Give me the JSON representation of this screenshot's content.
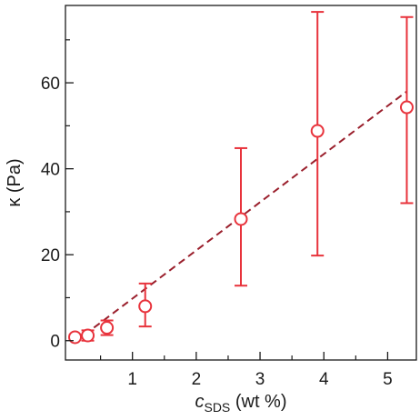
{
  "chart_data": {
    "type": "scatter",
    "xlabel": {
      "main": "c",
      "sub": "SDS",
      "rest": " (wt %)"
    },
    "ylabel": "κ (Pa)",
    "xlim": [
      -0.05,
      5.45
    ],
    "ylim": [
      -4.5,
      78
    ],
    "x_ticks": [
      1,
      2,
      3,
      4,
      5
    ],
    "x_minor_ticks": [
      0.5,
      1.5,
      2.5,
      3.5,
      4.5
    ],
    "y_ticks": [
      0,
      20,
      40,
      60
    ],
    "y_minor_ticks": [
      10,
      30,
      50,
      70
    ],
    "grid": false,
    "legend": "none",
    "colors": {
      "data": "#e8333c",
      "fit": "#9a1f2c",
      "axis": "#1a1a1a"
    },
    "series": [
      {
        "points": [
          {
            "x": 0.1,
            "y": 0.8,
            "err_low": 0.3,
            "err_high": 1.3
          },
          {
            "x": 0.3,
            "y": 1.2,
            "err_low": 0.0,
            "err_high": 2.4
          },
          {
            "x": 0.6,
            "y": 3.0,
            "err_low": 1.3,
            "err_high": 4.7
          },
          {
            "x": 1.2,
            "y": 8.0,
            "err_low": 3.3,
            "err_high": 13.3
          },
          {
            "x": 2.7,
            "y": 28.3,
            "err_low": 12.8,
            "err_high": 44.8
          },
          {
            "x": 3.9,
            "y": 48.8,
            "err_low": 19.8,
            "err_high": 76.5
          },
          {
            "x": 5.3,
            "y": 54.3,
            "err_low": 32.0,
            "err_high": 75.3
          }
        ]
      }
    ],
    "fit_line": {
      "x": [
        0.1,
        5.3
      ],
      "y": [
        -0.3,
        58.0
      ],
      "style": "dashed"
    }
  }
}
